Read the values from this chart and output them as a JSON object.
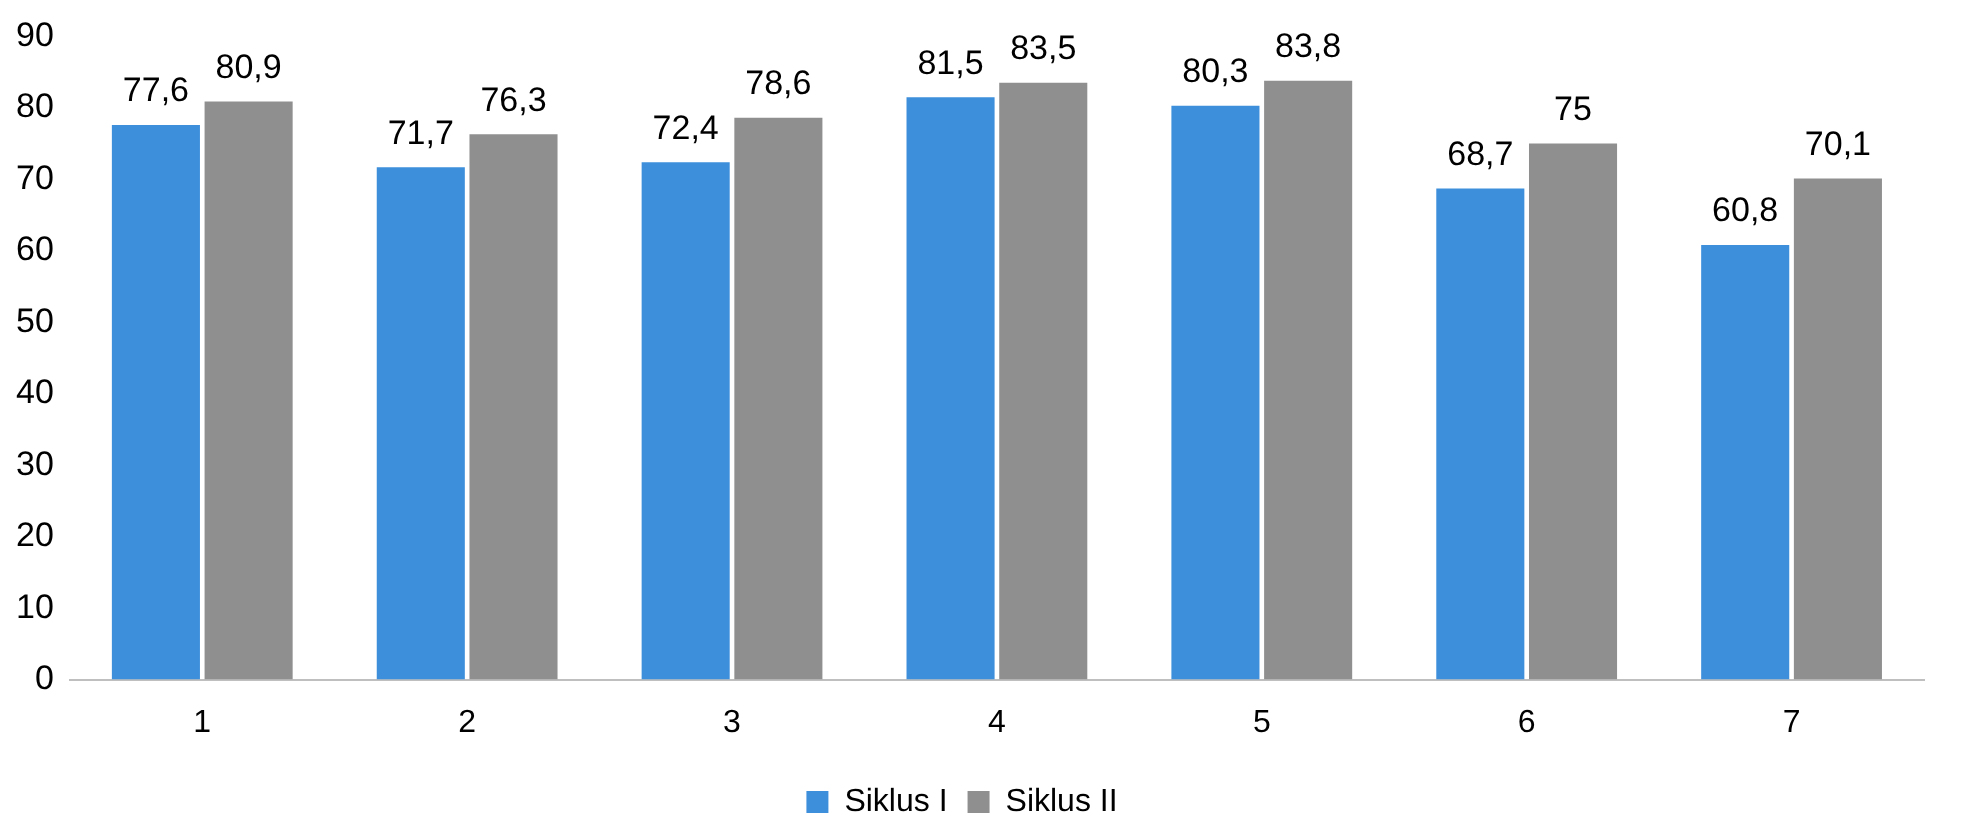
{
  "chart_data": {
    "type": "bar",
    "categories": [
      "1",
      "2",
      "3",
      "4",
      "5",
      "6",
      "7"
    ],
    "series": [
      {
        "name": "Siklus I",
        "color": "#3d8fdc",
        "values": [
          77.6,
          71.7,
          72.4,
          81.5,
          80.3,
          68.7,
          60.8
        ],
        "value_labels": [
          "77,6",
          "71,7",
          "72,4",
          "81,5",
          "80,3",
          "68,7",
          "60,8"
        ]
      },
      {
        "name": "Siklus II",
        "color": "#8f8f8f",
        "values": [
          80.9,
          76.3,
          78.6,
          83.5,
          83.8,
          75,
          70.1
        ],
        "value_labels": [
          "80,9",
          "76,3",
          "78,6",
          "83,5",
          "83,8",
          "75",
          "70,1"
        ]
      }
    ],
    "ylim": [
      0,
      90
    ],
    "yticks": [
      0,
      10,
      20,
      30,
      40,
      50,
      60,
      70,
      80,
      90
    ],
    "grid": false,
    "legend": "bottom"
  }
}
